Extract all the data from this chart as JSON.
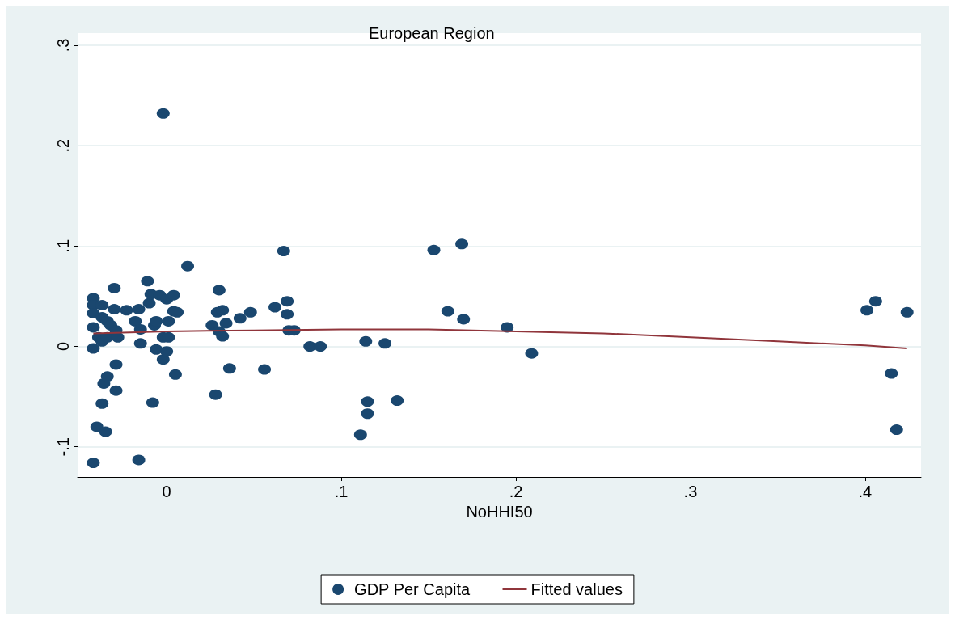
{
  "chart_data": {
    "type": "scatter",
    "title": "European Region",
    "xlabel": "NoHHI50",
    "xlim": [
      -0.051,
      0.432
    ],
    "ylim": [
      -0.13,
      0.312
    ],
    "xticks": [
      {
        "value": 0,
        "label": "0"
      },
      {
        "value": 0.1,
        "label": ".1"
      },
      {
        "value": 0.2,
        "label": ".2"
      },
      {
        "value": 0.3,
        "label": ".3"
      },
      {
        "value": 0.4,
        "label": ".4"
      }
    ],
    "yticks": [
      {
        "value": -0.1,
        "label": "-.1"
      },
      {
        "value": 0,
        "label": "0"
      },
      {
        "value": 0.1,
        "label": ".1"
      },
      {
        "value": 0.2,
        "label": ".2"
      },
      {
        "value": 0.3,
        "label": ".3"
      }
    ],
    "grid": "y",
    "legend": "bottom",
    "marker": "circle",
    "series": [
      {
        "name": "GDP Per Capita",
        "color": "#1a476f",
        "x": [
          -0.042,
          -0.016,
          -0.002,
          -0.04,
          -0.035,
          -0.037,
          -0.036,
          -0.034,
          -0.029,
          -0.029,
          -0.042,
          -0.042,
          -0.042,
          -0.042,
          -0.042,
          -0.039,
          -0.037,
          -0.034,
          -0.037,
          -0.037,
          -0.034,
          -0.032,
          -0.03,
          -0.03,
          -0.029,
          -0.028,
          -0.023,
          -0.018,
          -0.016,
          -0.015,
          -0.015,
          -0.011,
          -0.01,
          -0.009,
          -0.008,
          -0.007,
          -0.006,
          -0.006,
          -0.004,
          -0.002,
          -0.002,
          0,
          0.001,
          0,
          0.001,
          0.004,
          0.004,
          0.006,
          0.005,
          0.012,
          0.026,
          0.028,
          0.029,
          0.03,
          0.03,
          0.032,
          0.032,
          0.034,
          0.036,
          0.042,
          0.048,
          0.056,
          0.062,
          0.067,
          0.069,
          0.069,
          0.07,
          0.073,
          0.082,
          0.088,
          0.114,
          0.111,
          0.115,
          0.115,
          0.125,
          0.132,
          0.153,
          0.161,
          0.169,
          0.17,
          0.195,
          0.209,
          0.401,
          0.406,
          0.415,
          0.418,
          0.424
        ],
        "values": [
          -0.116,
          -0.113,
          0.232,
          -0.08,
          -0.085,
          -0.057,
          -0.037,
          -0.03,
          -0.044,
          -0.018,
          -0.002,
          0.048,
          0.041,
          0.033,
          0.019,
          0.009,
          0.005,
          0.009,
          0.041,
          0.029,
          0.025,
          0.021,
          0.058,
          0.037,
          0.016,
          0.009,
          0.036,
          0.025,
          0.037,
          0.017,
          0.003,
          0.065,
          0.043,
          0.052,
          -0.056,
          0.021,
          0.025,
          -0.003,
          0.051,
          0.009,
          -0.013,
          0.047,
          0.025,
          -0.005,
          0.009,
          0.051,
          0.035,
          0.034,
          -0.028,
          0.08,
          0.021,
          -0.048,
          0.034,
          0.056,
          0.015,
          0.036,
          0.01,
          0.023,
          -0.022,
          0.028,
          0.034,
          -0.023,
          0.039,
          0.095,
          0.045,
          0.032,
          0.016,
          0.016,
          0,
          0,
          0.005,
          -0.088,
          -0.055,
          -0.067,
          0.003,
          -0.054,
          0.096,
          0.035,
          0.102,
          0.027,
          0.019,
          -0.007,
          0.036,
          0.045,
          -0.027,
          -0.083,
          0.034
        ]
      },
      {
        "name": "Fitted values",
        "color": "#90353b",
        "type": "line",
        "marker": "none",
        "x": [
          -0.042,
          0,
          0.05,
          0.1,
          0.15,
          0.2,
          0.25,
          0.3,
          0.35,
          0.4,
          0.424
        ],
        "values": [
          0.013,
          0.015,
          0.016,
          0.017,
          0.017,
          0.015,
          0.013,
          0.009,
          0.005,
          0.001,
          -0.002
        ]
      }
    ]
  }
}
